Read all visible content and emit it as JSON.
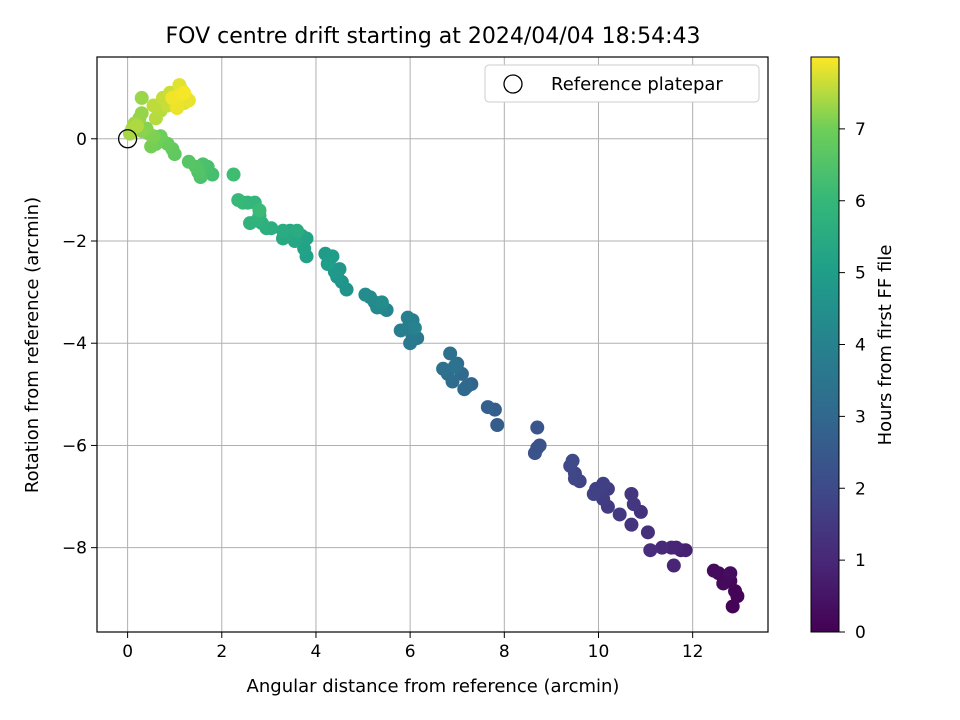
{
  "chart_data": {
    "type": "scatter",
    "title": "FOV centre drift starting at 2024/04/04 18:54:43",
    "xlabel": "Angular distance from reference (arcmin)",
    "ylabel": "Rotation from reference (arcmin)",
    "xlim": [
      -0.65,
      13.6
    ],
    "ylim": [
      -9.65,
      1.6
    ],
    "xticks": [
      0,
      2,
      4,
      6,
      8,
      10,
      12
    ],
    "yticks": [
      -8,
      -6,
      -4,
      -2,
      0
    ],
    "grid": true,
    "legend": {
      "position": "top-right",
      "entries": [
        {
          "label": "Reference platepar",
          "marker": "open-circle"
        }
      ]
    },
    "reference_point": {
      "x": 0,
      "y": 0,
      "label": "Reference platepar"
    },
    "colorbar": {
      "label": "Hours from first FF file",
      "colormap": "viridis",
      "range": [
        0,
        8.0
      ],
      "ticks": [
        0,
        1,
        2,
        3,
        4,
        5,
        6,
        7
      ]
    },
    "series": [
      {
        "value_name": "hours",
        "points": [
          [
            12.85,
            -9.15,
            0.05
          ],
          [
            12.95,
            -8.95,
            0.08
          ],
          [
            12.9,
            -8.85,
            0.1
          ],
          [
            12.8,
            -8.65,
            0.12
          ],
          [
            12.7,
            -8.6,
            0.15
          ],
          [
            12.55,
            -8.5,
            0.2
          ],
          [
            12.45,
            -8.45,
            0.25
          ],
          [
            12.8,
            -8.5,
            0.3
          ],
          [
            12.65,
            -8.7,
            0.22
          ],
          [
            11.85,
            -8.05,
            0.8
          ],
          [
            11.75,
            -8.05,
            0.85
          ],
          [
            11.65,
            -8.0,
            0.9
          ],
          [
            11.55,
            -8.0,
            0.95
          ],
          [
            11.6,
            -8.35,
            0.95
          ],
          [
            11.35,
            -8.0,
            1.05
          ],
          [
            11.1,
            -8.05,
            1.15
          ],
          [
            11.05,
            -7.7,
            1.2
          ],
          [
            10.9,
            -7.3,
            1.3
          ],
          [
            10.7,
            -7.55,
            1.35
          ],
          [
            10.75,
            -7.15,
            1.4
          ],
          [
            10.7,
            -6.95,
            1.45
          ],
          [
            10.45,
            -7.35,
            1.5
          ],
          [
            10.2,
            -7.2,
            1.55
          ],
          [
            10.1,
            -7.05,
            1.6
          ],
          [
            10.2,
            -6.85,
            1.62
          ],
          [
            10.05,
            -6.9,
            1.65
          ],
          [
            9.95,
            -6.85,
            1.7
          ],
          [
            10.1,
            -6.75,
            1.72
          ],
          [
            9.9,
            -6.95,
            1.75
          ],
          [
            9.6,
            -6.7,
            1.8
          ],
          [
            9.5,
            -6.55,
            1.85
          ],
          [
            9.5,
            -6.65,
            1.9
          ],
          [
            9.4,
            -6.4,
            1.95
          ],
          [
            9.45,
            -6.3,
            2.0
          ],
          [
            8.7,
            -6.05,
            2.2
          ],
          [
            8.65,
            -6.15,
            2.25
          ],
          [
            8.75,
            -6.0,
            2.3
          ],
          [
            8.7,
            -5.65,
            2.35
          ],
          [
            7.85,
            -5.6,
            2.6
          ],
          [
            7.8,
            -5.3,
            2.65
          ],
          [
            7.65,
            -5.25,
            2.7
          ],
          [
            7.3,
            -4.8,
            2.9
          ],
          [
            7.2,
            -4.85,
            3.0
          ],
          [
            7.15,
            -4.9,
            3.05
          ],
          [
            7.1,
            -4.6,
            3.1
          ],
          [
            7.0,
            -4.4,
            3.15
          ],
          [
            6.9,
            -4.75,
            3.2
          ],
          [
            6.8,
            -4.6,
            3.25
          ],
          [
            6.7,
            -4.5,
            3.3
          ],
          [
            6.85,
            -4.2,
            3.35
          ],
          [
            6.95,
            -4.45,
            3.4
          ],
          [
            6.15,
            -3.9,
            3.6
          ],
          [
            6.0,
            -4.0,
            3.65
          ],
          [
            6.05,
            -3.85,
            3.7
          ],
          [
            5.95,
            -3.7,
            3.75
          ],
          [
            5.8,
            -3.75,
            3.8
          ],
          [
            6.05,
            -3.55,
            3.85
          ],
          [
            5.95,
            -3.5,
            3.9
          ],
          [
            6.1,
            -3.7,
            3.95
          ],
          [
            5.5,
            -3.35,
            4.1
          ],
          [
            5.4,
            -3.3,
            4.15
          ],
          [
            5.3,
            -3.3,
            4.2
          ],
          [
            5.25,
            -3.2,
            4.25
          ],
          [
            5.15,
            -3.1,
            4.3
          ],
          [
            5.05,
            -3.05,
            4.35
          ],
          [
            5.4,
            -3.2,
            4.4
          ],
          [
            4.65,
            -2.95,
            4.6
          ],
          [
            4.55,
            -2.8,
            4.65
          ],
          [
            4.45,
            -2.7,
            4.7
          ],
          [
            4.5,
            -2.55,
            4.75
          ],
          [
            4.4,
            -2.6,
            4.8
          ],
          [
            4.3,
            -2.35,
            4.85
          ],
          [
            4.2,
            -2.25,
            4.9
          ],
          [
            4.35,
            -2.3,
            4.95
          ],
          [
            4.25,
            -2.45,
            5.0
          ],
          [
            3.8,
            -2.3,
            5.1
          ],
          [
            3.75,
            -2.15,
            5.15
          ],
          [
            3.8,
            -1.95,
            5.2
          ],
          [
            3.7,
            -1.9,
            5.25
          ],
          [
            3.55,
            -2.0,
            5.3
          ],
          [
            3.4,
            -1.85,
            5.35
          ],
          [
            3.45,
            -1.8,
            5.4
          ],
          [
            3.3,
            -1.95,
            5.45
          ],
          [
            3.3,
            -1.8,
            5.5
          ],
          [
            3.6,
            -1.8,
            5.55
          ],
          [
            3.05,
            -1.75,
            5.6
          ],
          [
            2.95,
            -1.75,
            5.65
          ],
          [
            2.85,
            -1.65,
            5.7
          ],
          [
            2.75,
            -1.6,
            5.75
          ],
          [
            2.6,
            -1.65,
            5.8
          ],
          [
            2.8,
            -1.5,
            5.85
          ],
          [
            2.7,
            -1.25,
            5.9
          ],
          [
            2.55,
            -1.25,
            5.95
          ],
          [
            2.45,
            -1.25,
            6.0
          ],
          [
            2.35,
            -1.2,
            6.05
          ],
          [
            2.8,
            -1.4,
            6.1
          ],
          [
            2.25,
            -0.7,
            6.2
          ],
          [
            1.8,
            -0.7,
            6.3
          ],
          [
            1.7,
            -0.55,
            6.35
          ],
          [
            1.6,
            -0.5,
            6.4
          ],
          [
            1.55,
            -0.75,
            6.45
          ],
          [
            1.5,
            -0.65,
            6.5
          ],
          [
            1.45,
            -0.55,
            6.55
          ],
          [
            1.3,
            -0.45,
            6.6
          ],
          [
            1.0,
            -0.3,
            6.75
          ],
          [
            0.95,
            -0.2,
            6.8
          ],
          [
            0.85,
            -0.1,
            6.85
          ],
          [
            0.75,
            -0.05,
            6.9
          ],
          [
            0.7,
            0.05,
            6.95
          ],
          [
            0.6,
            -0.1,
            7.0
          ],
          [
            0.5,
            -0.15,
            7.05
          ],
          [
            0.55,
            0.05,
            7.1
          ],
          [
            0.45,
            0.1,
            7.12
          ],
          [
            0.4,
            0.2,
            7.15
          ],
          [
            0.3,
            0.15,
            7.2
          ],
          [
            0.25,
            0.4,
            7.25
          ],
          [
            0.3,
            0.5,
            7.28
          ],
          [
            0.3,
            0.8,
            7.3
          ],
          [
            0.15,
            0.3,
            7.35
          ],
          [
            0.05,
            0.1,
            7.4
          ],
          [
            0.1,
            0.2,
            7.42
          ],
          [
            0.2,
            0.25,
            7.45
          ],
          [
            0.6,
            0.4,
            7.5
          ],
          [
            0.7,
            0.55,
            7.52
          ],
          [
            0.55,
            0.65,
            7.55
          ],
          [
            0.75,
            0.8,
            7.6
          ],
          [
            0.85,
            0.65,
            7.62
          ],
          [
            0.9,
            0.9,
            7.65
          ],
          [
            1.0,
            0.7,
            7.7
          ],
          [
            1.05,
            0.85,
            7.72
          ],
          [
            1.15,
            0.95,
            7.75
          ],
          [
            1.2,
            0.7,
            7.78
          ],
          [
            1.1,
            1.05,
            7.8
          ],
          [
            1.25,
            0.8,
            7.82
          ],
          [
            1.3,
            0.75,
            7.85
          ],
          [
            1.05,
            0.6,
            7.88
          ],
          [
            1.1,
            0.85,
            7.9
          ],
          [
            0.95,
            0.8,
            7.92
          ],
          [
            1.2,
            0.9,
            7.95
          ]
        ]
      }
    ]
  }
}
